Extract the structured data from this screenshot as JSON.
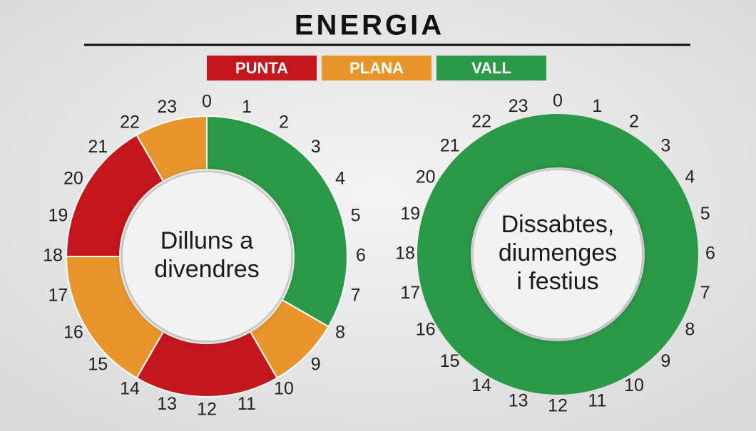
{
  "title": "ENERGIA",
  "legend": [
    {
      "name": "PUNTA",
      "color": "#c4161c"
    },
    {
      "name": "PLANA",
      "color": "#e8962b"
    },
    {
      "name": "VALL",
      "color": "#2b9a48"
    }
  ],
  "chart_data": [
    {
      "type": "donut",
      "center_label": [
        "Dilluns a",
        "divendres"
      ],
      "lim": [
        0,
        24
      ],
      "hours": [
        0,
        1,
        2,
        3,
        4,
        5,
        6,
        7,
        8,
        9,
        10,
        11,
        12,
        13,
        14,
        15,
        16,
        17,
        18,
        19,
        20,
        21,
        22,
        23
      ],
      "segments": [
        {
          "name": "VALL",
          "start": 0,
          "end": 8
        },
        {
          "name": "PLANA",
          "start": 8,
          "end": 10
        },
        {
          "name": "PUNTA",
          "start": 10,
          "end": 14
        },
        {
          "name": "PLANA",
          "start": 14,
          "end": 18
        },
        {
          "name": "PUNTA",
          "start": 18,
          "end": 22
        },
        {
          "name": "PLANA",
          "start": 22,
          "end": 24
        }
      ]
    },
    {
      "type": "donut",
      "center_label": [
        "Dissabtes,",
        "diumenges",
        "i festius"
      ],
      "lim": [
        0,
        24
      ],
      "hours": [
        0,
        1,
        2,
        3,
        4,
        5,
        6,
        7,
        8,
        9,
        10,
        11,
        12,
        13,
        14,
        15,
        16,
        17,
        18,
        19,
        20,
        21,
        22,
        23
      ],
      "segments": [
        {
          "name": "VALL",
          "start": 0,
          "end": 24
        }
      ]
    }
  ]
}
